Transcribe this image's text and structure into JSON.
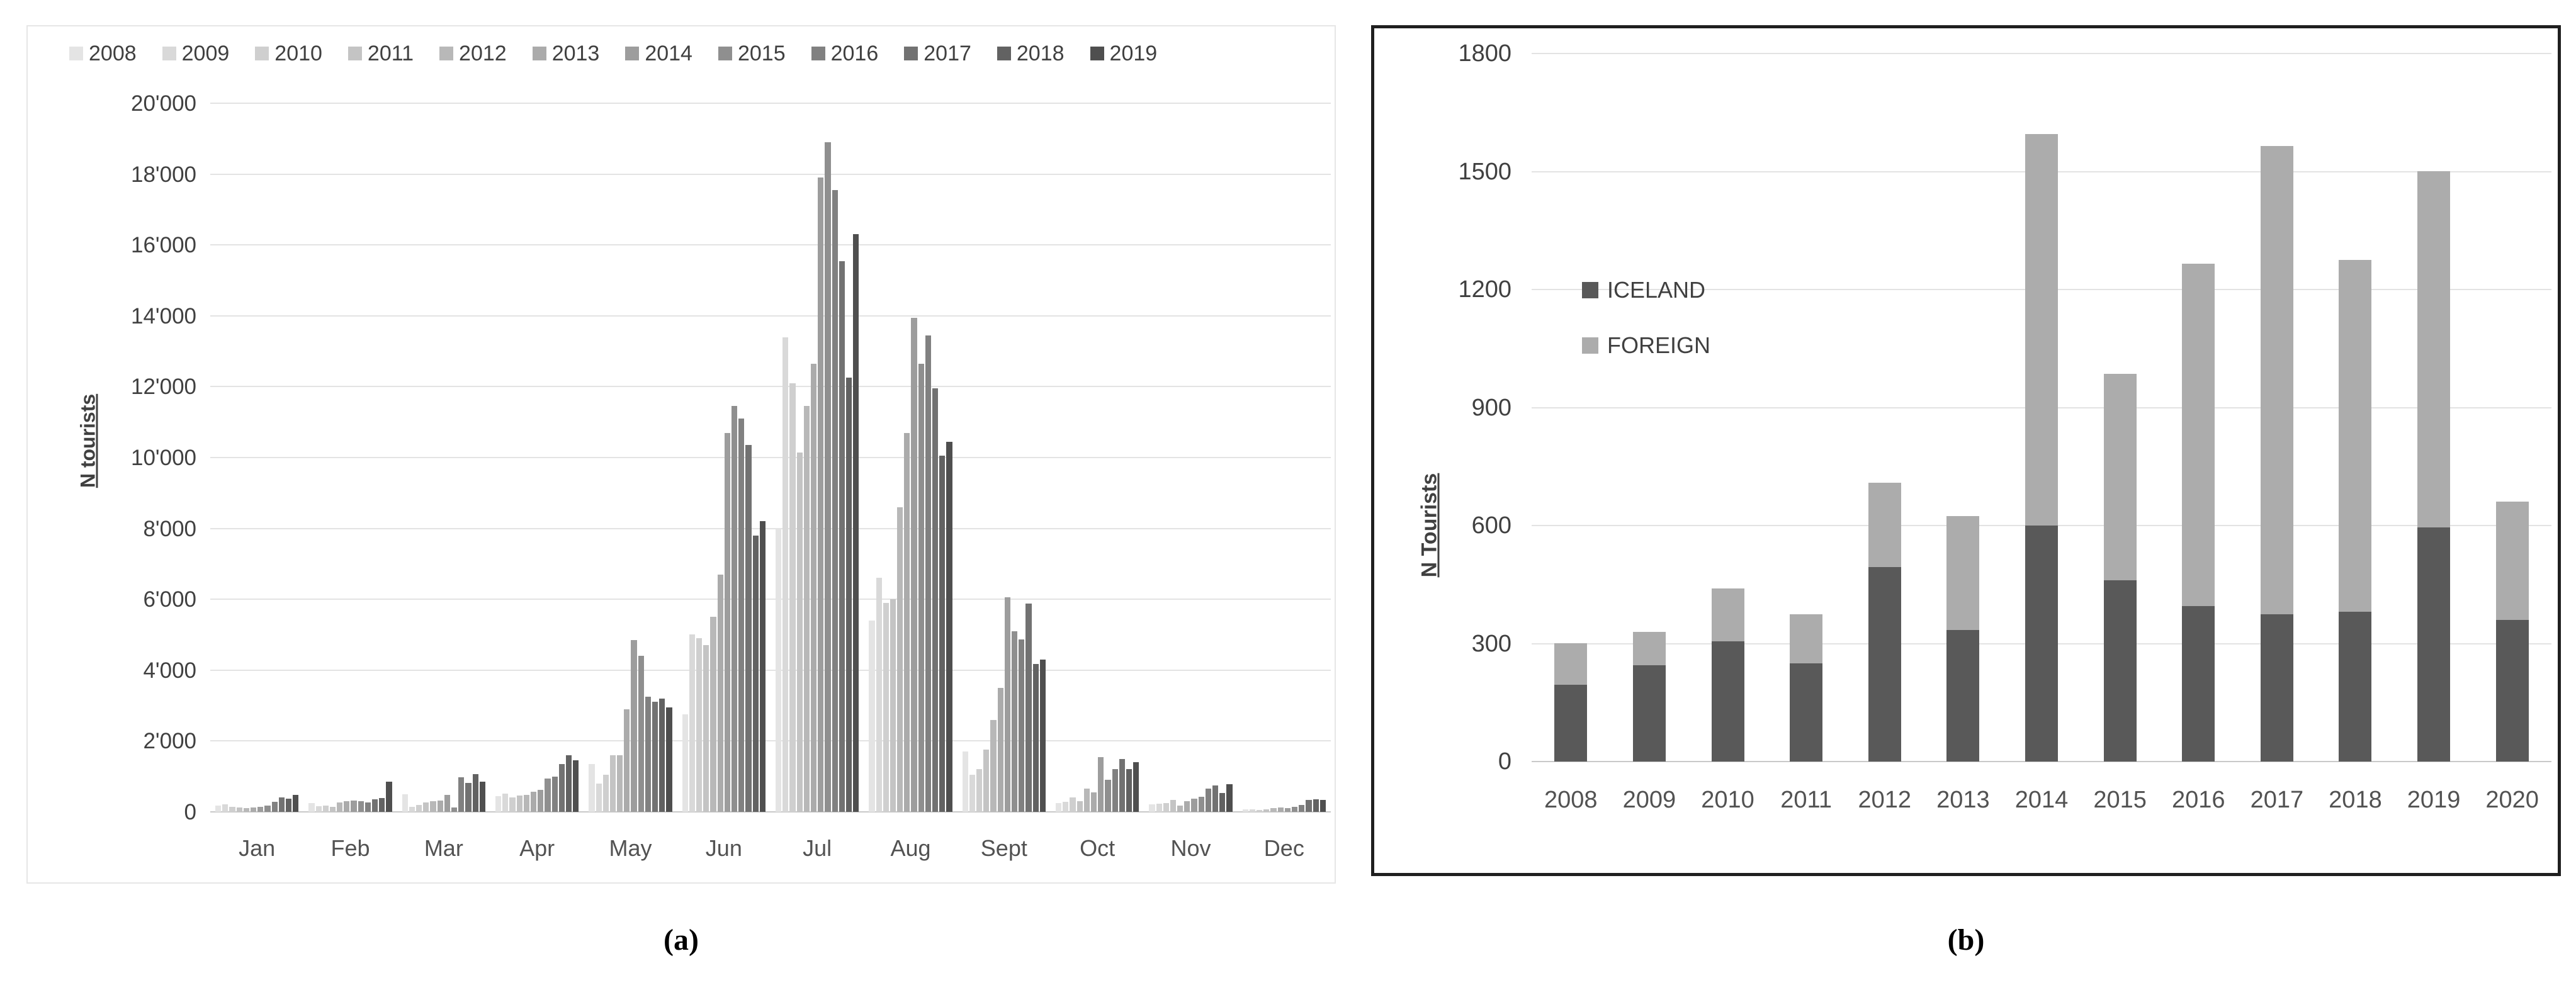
{
  "figure": {
    "caption_a": "(a)",
    "caption_b": "(b)"
  },
  "chart_data": [
    {
      "id": "panel-a-monthly-tourists",
      "type": "bar",
      "title": "",
      "xlabel": "",
      "ylabel": "N tourists",
      "categories": [
        "Jan",
        "Feb",
        "Mar",
        "Apr",
        "May",
        "Jun",
        "Jul",
        "Aug",
        "Sept",
        "Oct",
        "Nov",
        "Dec"
      ],
      "ylim": [
        0,
        20000
      ],
      "ytick_step": 2000,
      "ytick_labels": [
        "0",
        "2'000",
        "4'000",
        "6'000",
        "8'000",
        "10'000",
        "12'000",
        "14'000",
        "16'000",
        "18'000",
        "20'000"
      ],
      "grid": true,
      "legend_position": "top",
      "series": [
        {
          "name": "2008",
          "color": "#e4e4e4",
          "values": [
            180,
            250,
            500,
            440,
            1350,
            2750,
            8000,
            5400,
            1700,
            250,
            220,
            70
          ]
        },
        {
          "name": "2009",
          "color": "#d9d9d9",
          "values": [
            220,
            160,
            150,
            510,
            800,
            5000,
            13400,
            6600,
            1050,
            280,
            230,
            70
          ]
        },
        {
          "name": "2010",
          "color": "#cfcfcf",
          "values": [
            140,
            180,
            200,
            400,
            1050,
            4900,
            12100,
            5900,
            1200,
            400,
            240,
            50
          ]
        },
        {
          "name": "2011",
          "color": "#c4c4c4",
          "values": [
            120,
            140,
            260,
            460,
            1600,
            4700,
            10150,
            6000,
            1750,
            300,
            340,
            70
          ]
        },
        {
          "name": "2012",
          "color": "#b8b8b8",
          "values": [
            100,
            260,
            310,
            480,
            1600,
            5500,
            11450,
            8600,
            2600,
            650,
            170,
            100
          ]
        },
        {
          "name": "2013",
          "color": "#ababab",
          "values": [
            120,
            310,
            320,
            570,
            2900,
            6700,
            12650,
            10700,
            3500,
            550,
            300,
            130
          ]
        },
        {
          "name": "2014",
          "color": "#9d9d9d",
          "values": [
            140,
            320,
            475,
            620,
            4850,
            10700,
            17900,
            13950,
            6050,
            1550,
            370,
            100
          ]
        },
        {
          "name": "2015",
          "color": "#8f8f8f",
          "values": [
            180,
            295,
            130,
            940,
            4400,
            11450,
            18900,
            12650,
            5100,
            900,
            420,
            150
          ]
        },
        {
          "name": "2016",
          "color": "#818181",
          "values": [
            280,
            260,
            970,
            1000,
            3250,
            11100,
            17550,
            13450,
            4870,
            1200,
            650,
            200
          ]
        },
        {
          "name": "2017",
          "color": "#727272",
          "values": [
            415,
            355,
            810,
            1350,
            3100,
            10350,
            15550,
            11950,
            5880,
            1500,
            740,
            330
          ]
        },
        {
          "name": "2018",
          "color": "#626262",
          "values": [
            380,
            395,
            1060,
            1590,
            3200,
            7800,
            12250,
            10050,
            4170,
            1200,
            530,
            350
          ]
        },
        {
          "name": "2019",
          "color": "#4f4f4f",
          "values": [
            475,
            850,
            850,
            1450,
            2950,
            8200,
            16300,
            10450,
            4300,
            1400,
            780,
            340
          ]
        }
      ]
    },
    {
      "id": "panel-b-yearly-stacked",
      "type": "bar",
      "stacked": true,
      "title": "",
      "xlabel": "",
      "ylabel": "N Tourists",
      "categories": [
        "2008",
        "2009",
        "2010",
        "2011",
        "2012",
        "2013",
        "2014",
        "2015",
        "2016",
        "2017",
        "2018",
        "2019",
        "2020"
      ],
      "ylim": [
        0,
        1800
      ],
      "ytick_step": 300,
      "ytick_labels": [
        "0",
        "300",
        "600",
        "900",
        "1200",
        "1500",
        "1800"
      ],
      "grid": true,
      "legend_position": "upper-left",
      "series": [
        {
          "name": "ICELAND",
          "color": "#595959",
          "values": [
            195,
            245,
            305,
            250,
            495,
            335,
            600,
            460,
            395,
            375,
            380,
            595,
            360
          ]
        },
        {
          "name": "FOREIGN",
          "color": "#acacac",
          "values": [
            105,
            85,
            135,
            125,
            215,
            290,
            995,
            525,
            870,
            1190,
            895,
            905,
            300
          ]
        }
      ]
    }
  ]
}
